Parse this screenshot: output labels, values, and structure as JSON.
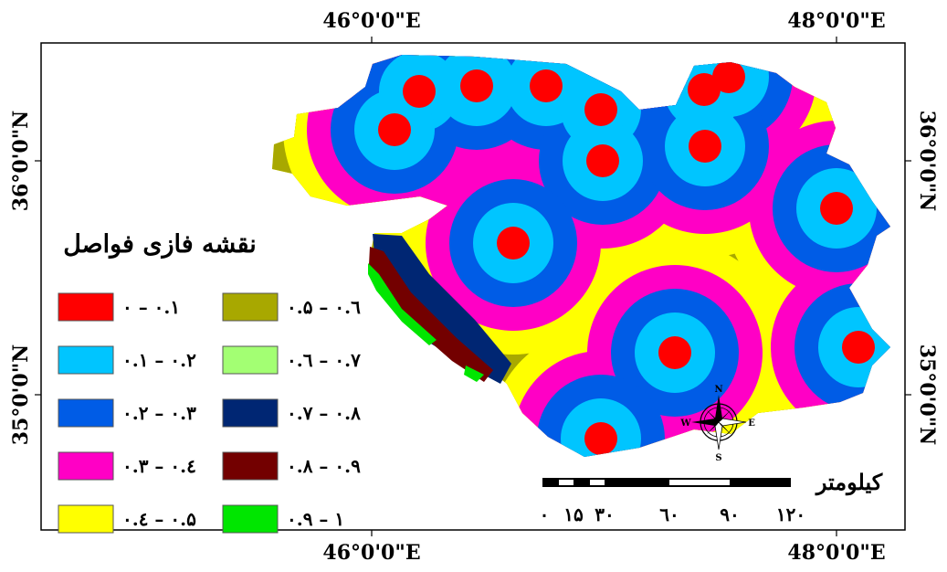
{
  "axis_labels": {
    "top_left": "46°0'0\"E",
    "top_right": "48°0'0\"E",
    "bottom_left": "46°0'0\"E",
    "bottom_right": "48°0'0\"E",
    "left_upper": "36°0'0\"N",
    "left_lower": "35°0'0\"N",
    "right_upper": "36°0'0\"N",
    "right_lower": "35°0'0\"N"
  },
  "legend": {
    "title": "نقشه فازی فواصل",
    "items": [
      {
        "label": "۰ – ۰.۱",
        "color": "#ff0000"
      },
      {
        "label": "۰.۱ – ۰.۲",
        "color": "#00c5ff"
      },
      {
        "label": "۰.۲ – ۰.۳",
        "color": "#005ce6"
      },
      {
        "label": "۰.۳ – ۰.٤",
        "color": "#ff00c5"
      },
      {
        "label": "۰.٤ – ۰.۵",
        "color": "#ffff00"
      },
      {
        "label": "۰.۵ – ۰.٦",
        "color": "#a8a800"
      },
      {
        "label": "۰.٦ – ۰.۷",
        "color": "#a3ff73"
      },
      {
        "label": "۰.۷ – ۰.۸",
        "color": "#002673"
      },
      {
        "label": "۰.۸ – ۰.۹",
        "color": "#730000"
      },
      {
        "label": "۰.۹ – ۱",
        "color": "#00e600"
      }
    ]
  },
  "scale_bar": {
    "unit": "کیلومتر",
    "ticks": [
      "۰",
      "۱۵",
      "۳۰",
      "٦۰",
      "۹۰",
      "۱۲۰"
    ]
  },
  "compass": {
    "n": "N",
    "s": "S",
    "e": "E",
    "w": "W"
  }
}
